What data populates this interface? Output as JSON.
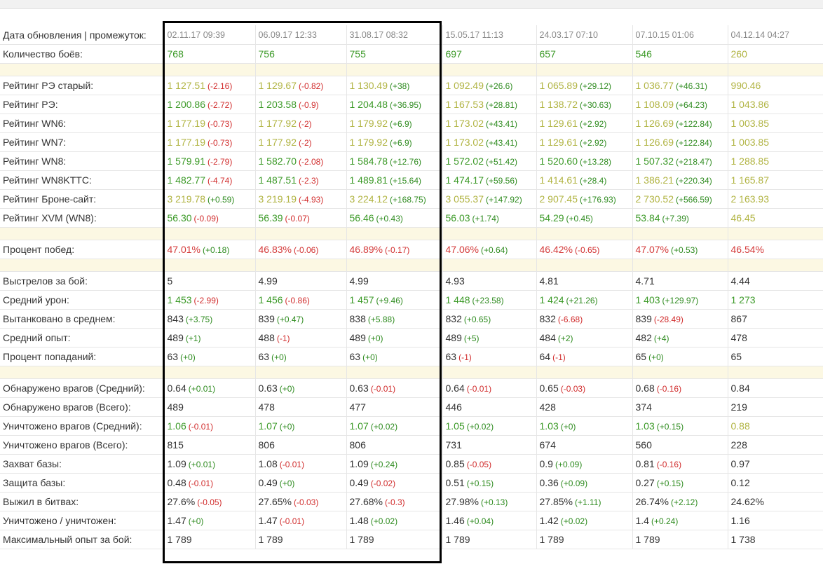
{
  "header": {
    "label": "Дата обновления | промежуток:",
    "dates": [
      "02.11.17 09:39",
      "06.09.17 12:33",
      "31.08.17 08:32",
      "15.05.17 11:13",
      "24.03.17 07:10",
      "07.10.15 01:06",
      "04.12.14 04:27"
    ]
  },
  "rows": [
    {
      "label": "Количество боёв:",
      "cells": [
        {
          "v": "768",
          "c": "g"
        },
        {
          "v": "756",
          "c": "g"
        },
        {
          "v": "755",
          "c": "g"
        },
        {
          "v": "697",
          "c": "g"
        },
        {
          "v": "657",
          "c": "g"
        },
        {
          "v": "546",
          "c": "g"
        },
        {
          "v": "260",
          "c": "y"
        }
      ]
    },
    {
      "sep": true
    },
    {
      "label": "Рейтинг РЭ старый:",
      "cells": [
        {
          "v": "1 127.51",
          "c": "y",
          "d": "(-2.16)"
        },
        {
          "v": "1 129.67",
          "c": "y",
          "d": "(-0.82)"
        },
        {
          "v": "1 130.49",
          "c": "y",
          "d": "(+38)"
        },
        {
          "v": "1 092.49",
          "c": "y",
          "d": "(+26.6)"
        },
        {
          "v": "1 065.89",
          "c": "y",
          "d": "(+29.12)"
        },
        {
          "v": "1 036.77",
          "c": "y",
          "d": "(+46.31)"
        },
        {
          "v": "990.46",
          "c": "y"
        }
      ]
    },
    {
      "label": "Рейтинг РЭ:",
      "cells": [
        {
          "v": "1 200.86",
          "c": "g",
          "d": "(-2.72)"
        },
        {
          "v": "1 203.58",
          "c": "g",
          "d": "(-0.9)"
        },
        {
          "v": "1 204.48",
          "c": "g",
          "d": "(+36.95)"
        },
        {
          "v": "1 167.53",
          "c": "y",
          "d": "(+28.81)"
        },
        {
          "v": "1 138.72",
          "c": "y",
          "d": "(+30.63)"
        },
        {
          "v": "1 108.09",
          "c": "y",
          "d": "(+64.23)"
        },
        {
          "v": "1 043.86",
          "c": "y"
        }
      ]
    },
    {
      "label": "Рейтинг WN6:",
      "cells": [
        {
          "v": "1 177.19",
          "c": "y",
          "d": "(-0.73)"
        },
        {
          "v": "1 177.92",
          "c": "y",
          "d": "(-2)"
        },
        {
          "v": "1 179.92",
          "c": "y",
          "d": "(+6.9)"
        },
        {
          "v": "1 173.02",
          "c": "y",
          "d": "(+43.41)"
        },
        {
          "v": "1 129.61",
          "c": "y",
          "d": "(+2.92)"
        },
        {
          "v": "1 126.69",
          "c": "y",
          "d": "(+122.84)"
        },
        {
          "v": "1 003.85",
          "c": "y"
        }
      ]
    },
    {
      "label": "Рейтинг WN7:",
      "cells": [
        {
          "v": "1 177.19",
          "c": "y",
          "d": "(-0.73)"
        },
        {
          "v": "1 177.92",
          "c": "y",
          "d": "(-2)"
        },
        {
          "v": "1 179.92",
          "c": "y",
          "d": "(+6.9)"
        },
        {
          "v": "1 173.02",
          "c": "y",
          "d": "(+43.41)"
        },
        {
          "v": "1 129.61",
          "c": "y",
          "d": "(+2.92)"
        },
        {
          "v": "1 126.69",
          "c": "y",
          "d": "(+122.84)"
        },
        {
          "v": "1 003.85",
          "c": "y"
        }
      ]
    },
    {
      "label": "Рейтинг WN8:",
      "cells": [
        {
          "v": "1 579.91",
          "c": "g",
          "d": "(-2.79)"
        },
        {
          "v": "1 582.70",
          "c": "g",
          "d": "(-2.08)"
        },
        {
          "v": "1 584.78",
          "c": "g",
          "d": "(+12.76)"
        },
        {
          "v": "1 572.02",
          "c": "g",
          "d": "(+51.42)"
        },
        {
          "v": "1 520.60",
          "c": "g",
          "d": "(+13.28)"
        },
        {
          "v": "1 507.32",
          "c": "g",
          "d": "(+218.47)"
        },
        {
          "v": "1 288.85",
          "c": "y"
        }
      ]
    },
    {
      "label": "Рейтинг WN8KTTC:",
      "cells": [
        {
          "v": "1 482.77",
          "c": "g",
          "d": "(-4.74)"
        },
        {
          "v": "1 487.51",
          "c": "g",
          "d": "(-2.3)"
        },
        {
          "v": "1 489.81",
          "c": "g",
          "d": "(+15.64)"
        },
        {
          "v": "1 474.17",
          "c": "g",
          "d": "(+59.56)"
        },
        {
          "v": "1 414.61",
          "c": "y",
          "d": "(+28.4)"
        },
        {
          "v": "1 386.21",
          "c": "y",
          "d": "(+220.34)"
        },
        {
          "v": "1 165.87",
          "c": "y"
        }
      ]
    },
    {
      "label": "Рейтинг Броне-сайт:",
      "cells": [
        {
          "v": "3 219.78",
          "c": "y",
          "d": "(+0.59)"
        },
        {
          "v": "3 219.19",
          "c": "y",
          "d": "(-4.93)"
        },
        {
          "v": "3 224.12",
          "c": "y",
          "d": "(+168.75)"
        },
        {
          "v": "3 055.37",
          "c": "y",
          "d": "(+147.92)"
        },
        {
          "v": "2 907.45",
          "c": "y",
          "d": "(+176.93)"
        },
        {
          "v": "2 730.52",
          "c": "y",
          "d": "(+566.59)"
        },
        {
          "v": "2 163.93",
          "c": "y"
        }
      ]
    },
    {
      "label": "Рейтинг XVM (WN8):",
      "cells": [
        {
          "v": "56.30",
          "c": "g",
          "d": "(-0.09)"
        },
        {
          "v": "56.39",
          "c": "g",
          "d": "(-0.07)"
        },
        {
          "v": "56.46",
          "c": "g",
          "d": "(+0.43)"
        },
        {
          "v": "56.03",
          "c": "g",
          "d": "(+1.74)"
        },
        {
          "v": "54.29",
          "c": "g",
          "d": "(+0.45)"
        },
        {
          "v": "53.84",
          "c": "g",
          "d": "(+7.39)"
        },
        {
          "v": "46.45",
          "c": "y"
        }
      ]
    },
    {
      "sep": true
    },
    {
      "label": "Процент побед:",
      "cells": [
        {
          "v": "47.01%",
          "c": "r",
          "d": "(+0.18)"
        },
        {
          "v": "46.83%",
          "c": "r",
          "d": "(-0.06)"
        },
        {
          "v": "46.89%",
          "c": "r",
          "d": "(-0.17)"
        },
        {
          "v": "47.06%",
          "c": "r",
          "d": "(+0.64)"
        },
        {
          "v": "46.42%",
          "c": "r",
          "d": "(-0.65)"
        },
        {
          "v": "47.07%",
          "c": "r",
          "d": "(+0.53)"
        },
        {
          "v": "46.54%",
          "c": "r"
        }
      ]
    },
    {
      "sep": true
    },
    {
      "label": "Выстрелов за бой:",
      "cells": [
        {
          "v": "5",
          "c": "k"
        },
        {
          "v": "4.99",
          "c": "k"
        },
        {
          "v": "4.99",
          "c": "k"
        },
        {
          "v": "4.93",
          "c": "k"
        },
        {
          "v": "4.81",
          "c": "k"
        },
        {
          "v": "4.71",
          "c": "k"
        },
        {
          "v": "4.44",
          "c": "k"
        }
      ]
    },
    {
      "label": "Средний урон:",
      "cells": [
        {
          "v": "1 453",
          "c": "g",
          "d": "(-2.99)"
        },
        {
          "v": "1 456",
          "c": "g",
          "d": "(-0.86)"
        },
        {
          "v": "1 457",
          "c": "g",
          "d": "(+9.46)"
        },
        {
          "v": "1 448",
          "c": "g",
          "d": "(+23.58)"
        },
        {
          "v": "1 424",
          "c": "g",
          "d": "(+21.26)"
        },
        {
          "v": "1 403",
          "c": "g",
          "d": "(+129.97)"
        },
        {
          "v": "1 273",
          "c": "g"
        }
      ]
    },
    {
      "label": "Вытанковано в среднем:",
      "cells": [
        {
          "v": "843",
          "c": "k",
          "d": "(+3.75)"
        },
        {
          "v": "839",
          "c": "k",
          "d": "(+0.47)"
        },
        {
          "v": "838",
          "c": "k",
          "d": "(+5.88)"
        },
        {
          "v": "832",
          "c": "k",
          "d": "(+0.65)"
        },
        {
          "v": "832",
          "c": "k",
          "d": "(-6.68)"
        },
        {
          "v": "839",
          "c": "k",
          "d": "(-28.49)"
        },
        {
          "v": "867",
          "c": "k"
        }
      ]
    },
    {
      "label": "Средний опыт:",
      "cells": [
        {
          "v": "489",
          "c": "k",
          "d": "(+1)"
        },
        {
          "v": "488",
          "c": "k",
          "d": "(-1)"
        },
        {
          "v": "489",
          "c": "k",
          "d": "(+0)"
        },
        {
          "v": "489",
          "c": "k",
          "d": "(+5)"
        },
        {
          "v": "484",
          "c": "k",
          "d": "(+2)"
        },
        {
          "v": "482",
          "c": "k",
          "d": "(+4)"
        },
        {
          "v": "478",
          "c": "k"
        }
      ]
    },
    {
      "label": "Процент попаданий:",
      "cells": [
        {
          "v": "63",
          "c": "k",
          "d": "(+0)"
        },
        {
          "v": "63",
          "c": "k",
          "d": "(+0)"
        },
        {
          "v": "63",
          "c": "k",
          "d": "(+0)"
        },
        {
          "v": "63",
          "c": "k",
          "d": "(-1)"
        },
        {
          "v": "64",
          "c": "k",
          "d": "(-1)"
        },
        {
          "v": "65",
          "c": "k",
          "d": "(+0)"
        },
        {
          "v": "65",
          "c": "k"
        }
      ]
    },
    {
      "sep": true
    },
    {
      "label": "Обнаружено врагов (Средний):",
      "cells": [
        {
          "v": "0.64",
          "c": "k",
          "d": "(+0.01)"
        },
        {
          "v": "0.63",
          "c": "k",
          "d": "(+0)"
        },
        {
          "v": "0.63",
          "c": "k",
          "d": "(-0.01)"
        },
        {
          "v": "0.64",
          "c": "k",
          "d": "(-0.01)"
        },
        {
          "v": "0.65",
          "c": "k",
          "d": "(-0.03)"
        },
        {
          "v": "0.68",
          "c": "k",
          "d": "(-0.16)"
        },
        {
          "v": "0.84",
          "c": "k"
        }
      ]
    },
    {
      "label": "Обнаружено врагов (Всего):",
      "cells": [
        {
          "v": "489",
          "c": "k"
        },
        {
          "v": "478",
          "c": "k"
        },
        {
          "v": "477",
          "c": "k"
        },
        {
          "v": "446",
          "c": "k"
        },
        {
          "v": "428",
          "c": "k"
        },
        {
          "v": "374",
          "c": "k"
        },
        {
          "v": "219",
          "c": "k"
        }
      ]
    },
    {
      "label": "Уничтожено врагов (Средний):",
      "cells": [
        {
          "v": "1.06",
          "c": "g",
          "d": "(-0.01)"
        },
        {
          "v": "1.07",
          "c": "g",
          "d": "(+0)"
        },
        {
          "v": "1.07",
          "c": "g",
          "d": "(+0.02)"
        },
        {
          "v": "1.05",
          "c": "g",
          "d": "(+0.02)"
        },
        {
          "v": "1.03",
          "c": "g",
          "d": "(+0)"
        },
        {
          "v": "1.03",
          "c": "g",
          "d": "(+0.15)"
        },
        {
          "v": "0.88",
          "c": "y"
        }
      ]
    },
    {
      "label": "Уничтожено врагов (Всего):",
      "cells": [
        {
          "v": "815",
          "c": "k"
        },
        {
          "v": "806",
          "c": "k"
        },
        {
          "v": "806",
          "c": "k"
        },
        {
          "v": "731",
          "c": "k"
        },
        {
          "v": "674",
          "c": "k"
        },
        {
          "v": "560",
          "c": "k"
        },
        {
          "v": "228",
          "c": "k"
        }
      ]
    },
    {
      "label": "Захват базы:",
      "cells": [
        {
          "v": "1.09",
          "c": "k",
          "d": "(+0.01)"
        },
        {
          "v": "1.08",
          "c": "k",
          "d": "(-0.01)"
        },
        {
          "v": "1.09",
          "c": "k",
          "d": "(+0.24)"
        },
        {
          "v": "0.85",
          "c": "k",
          "d": "(-0.05)"
        },
        {
          "v": "0.9",
          "c": "k",
          "d": "(+0.09)"
        },
        {
          "v": "0.81",
          "c": "k",
          "d": "(-0.16)"
        },
        {
          "v": "0.97",
          "c": "k"
        }
      ]
    },
    {
      "label": "Защита базы:",
      "cells": [
        {
          "v": "0.48",
          "c": "k",
          "d": "(-0.01)"
        },
        {
          "v": "0.49",
          "c": "k",
          "d": "(+0)"
        },
        {
          "v": "0.49",
          "c": "k",
          "d": "(-0.02)"
        },
        {
          "v": "0.51",
          "c": "k",
          "d": "(+0.15)"
        },
        {
          "v": "0.36",
          "c": "k",
          "d": "(+0.09)"
        },
        {
          "v": "0.27",
          "c": "k",
          "d": "(+0.15)"
        },
        {
          "v": "0.12",
          "c": "k"
        }
      ]
    },
    {
      "label": "Выжил в битвах:",
      "cells": [
        {
          "v": "27.6%",
          "c": "k",
          "d": "(-0.05)"
        },
        {
          "v": "27.65%",
          "c": "k",
          "d": "(-0.03)"
        },
        {
          "v": "27.68%",
          "c": "k",
          "d": "(-0.3)"
        },
        {
          "v": "27.98%",
          "c": "k",
          "d": "(+0.13)"
        },
        {
          "v": "27.85%",
          "c": "k",
          "d": "(+1.11)"
        },
        {
          "v": "26.74%",
          "c": "k",
          "d": "(+2.12)"
        },
        {
          "v": "24.62%",
          "c": "k"
        }
      ]
    },
    {
      "label": "Уничтожено / уничтожен:",
      "cells": [
        {
          "v": "1.47",
          "c": "k",
          "d": "(+0)"
        },
        {
          "v": "1.47",
          "c": "k",
          "d": "(-0.01)"
        },
        {
          "v": "1.48",
          "c": "k",
          "d": "(+0.02)"
        },
        {
          "v": "1.46",
          "c": "k",
          "d": "(+0.04)"
        },
        {
          "v": "1.42",
          "c": "k",
          "d": "(+0.02)"
        },
        {
          "v": "1.4",
          "c": "k",
          "d": "(+0.24)"
        },
        {
          "v": "1.16",
          "c": "k"
        }
      ]
    },
    {
      "label": "Максимальный опыт за бой:",
      "cells": [
        {
          "v": "1 789",
          "c": "k"
        },
        {
          "v": "1 789",
          "c": "k"
        },
        {
          "v": "1 789",
          "c": "k"
        },
        {
          "v": "1 789",
          "c": "k"
        },
        {
          "v": "1 789",
          "c": "k"
        },
        {
          "v": "1 789",
          "c": "k"
        },
        {
          "v": "1 738",
          "c": "k"
        }
      ]
    }
  ],
  "colors": {
    "good": "#3c9a28",
    "average": "#b1b443",
    "bad": "#d43a3a",
    "delta_positive": "#2e8b1f",
    "delta_negative": "#d12d2d",
    "separator": "#fcf8e3",
    "grid": "#e6e6e6",
    "highlight_frame": "#000000"
  }
}
